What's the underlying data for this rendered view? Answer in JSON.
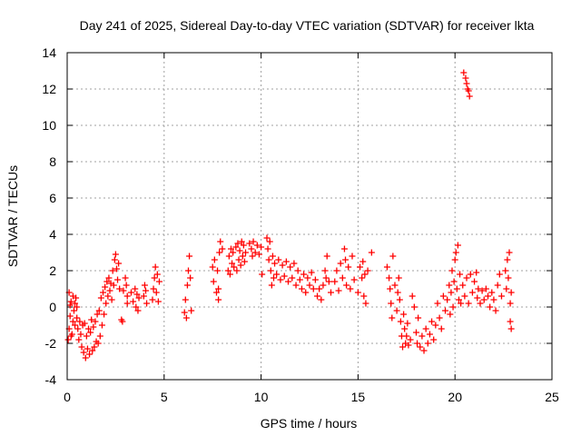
{
  "chart_data": {
    "type": "scatter",
    "title": "Day 241 of 2025, Sidereal Day-to-day VTEC variation (SDTVAR) for receiver lkta",
    "xlabel": "GPS time / hours",
    "ylabel": "SDTVAR / TECUs",
    "xlim": [
      0,
      25
    ],
    "ylim": [
      -4,
      14
    ],
    "xticks": [
      0,
      5,
      10,
      15,
      20,
      25
    ],
    "yticks": [
      -4,
      -2,
      0,
      2,
      4,
      6,
      8,
      10,
      12,
      14
    ],
    "grid": true,
    "marker": "+",
    "marker_color": "#ff0000",
    "series": [
      {
        "name": "SDTVAR",
        "points": [
          [
            0.05,
            -1.8
          ],
          [
            0.1,
            -1.2
          ],
          [
            0.1,
            0.8
          ],
          [
            0.15,
            -0.5
          ],
          [
            0.2,
            0.3
          ],
          [
            0.25,
            -1.5
          ],
          [
            0.3,
            0.6
          ],
          [
            0.35,
            -0.2
          ],
          [
            0.4,
            -1.0
          ],
          [
            0.45,
            0.5
          ],
          [
            0.5,
            -0.6
          ],
          [
            0.5,
            0.0
          ],
          [
            0.4,
            0.2
          ],
          [
            0.3,
            -0.8
          ],
          [
            0.2,
            -1.6
          ],
          [
            0.15,
            0.1
          ],
          [
            0.55,
            -1.2
          ],
          [
            0.6,
            -1.8
          ],
          [
            0.65,
            -0.8
          ],
          [
            0.7,
            -1.5
          ],
          [
            0.75,
            -2.2
          ],
          [
            0.8,
            -1.0
          ],
          [
            0.85,
            -2.5
          ],
          [
            0.9,
            -0.9
          ],
          [
            0.95,
            -2.8
          ],
          [
            1.0,
            -1.6
          ],
          [
            1.05,
            -2.3
          ],
          [
            1.1,
            -1.2
          ],
          [
            1.15,
            -2.6
          ],
          [
            1.2,
            -1.4
          ],
          [
            1.25,
            -0.7
          ],
          [
            1.3,
            -2.4
          ],
          [
            1.35,
            -1.1
          ],
          [
            1.4,
            -2.2
          ],
          [
            1.45,
            -0.8
          ],
          [
            1.5,
            -1.9
          ],
          [
            1.55,
            -0.4
          ],
          [
            1.6,
            -2.0
          ],
          [
            1.65,
            -0.2
          ],
          [
            1.7,
            -1.6
          ],
          [
            1.75,
            0.5
          ],
          [
            1.8,
            -1.0
          ],
          [
            1.85,
            0.8
          ],
          [
            1.9,
            -0.4
          ],
          [
            1.95,
            1.1
          ],
          [
            2.0,
            0.2
          ],
          [
            2.05,
            1.4
          ],
          [
            2.1,
            0.6
          ],
          [
            2.15,
            1.6
          ],
          [
            2.2,
            0.9
          ],
          [
            2.25,
            1.3
          ],
          [
            2.3,
            0.4
          ],
          [
            2.35,
            2.0
          ],
          [
            2.4,
            1.2
          ],
          [
            2.45,
            2.6
          ],
          [
            2.5,
            2.9
          ],
          [
            2.55,
            2.1
          ],
          [
            2.6,
            1.5
          ],
          [
            2.65,
            2.4
          ],
          [
            2.7,
            1.0
          ],
          [
            2.8,
            -0.7
          ],
          [
            2.85,
            -0.8
          ],
          [
            2.9,
            0.9
          ],
          [
            3.0,
            1.6
          ],
          [
            3.05,
            1.2
          ],
          [
            3.1,
            0.6
          ],
          [
            3.1,
            0.2
          ],
          [
            3.3,
            0.8
          ],
          [
            3.4,
            0.3
          ],
          [
            3.5,
            1.0
          ],
          [
            3.55,
            0.0
          ],
          [
            3.6,
            0.7
          ],
          [
            3.65,
            -0.2
          ],
          [
            3.7,
            0.5
          ],
          [
            3.95,
            0.6
          ],
          [
            4.0,
            1.2
          ],
          [
            4.05,
            0.9
          ],
          [
            4.1,
            0.2
          ],
          [
            4.4,
            0.4
          ],
          [
            4.45,
            1.0
          ],
          [
            4.5,
            1.6
          ],
          [
            4.55,
            2.2
          ],
          [
            4.6,
            0.8
          ],
          [
            4.65,
            1.8
          ],
          [
            4.7,
            0.3
          ],
          [
            4.75,
            1.4
          ],
          [
            6.05,
            -0.3
          ],
          [
            6.1,
            0.4
          ],
          [
            6.15,
            -0.6
          ],
          [
            6.2,
            1.2
          ],
          [
            6.25,
            2.0
          ],
          [
            6.3,
            2.8
          ],
          [
            6.35,
            1.6
          ],
          [
            6.4,
            -0.2
          ],
          [
            7.5,
            2.2
          ],
          [
            7.55,
            1.4
          ],
          [
            7.6,
            2.6
          ],
          [
            7.7,
            0.8
          ],
          [
            7.75,
            2.0
          ],
          [
            7.8,
            1.0
          ],
          [
            7.8,
            0.4
          ],
          [
            7.85,
            3.0
          ],
          [
            7.9,
            3.6
          ],
          [
            8.0,
            3.2
          ],
          [
            8.3,
            2.0
          ],
          [
            8.35,
            2.8
          ],
          [
            8.4,
            1.8
          ],
          [
            8.45,
            3.2
          ],
          [
            8.5,
            2.4
          ],
          [
            8.55,
            3.0
          ],
          [
            8.6,
            2.2
          ],
          [
            8.7,
            3.3
          ],
          [
            8.75,
            2.0
          ],
          [
            8.8,
            3.5
          ],
          [
            8.85,
            2.6
          ],
          [
            8.9,
            3.1
          ],
          [
            8.95,
            2.3
          ],
          [
            9.0,
            3.6
          ],
          [
            9.05,
            2.8
          ],
          [
            9.1,
            3.4
          ],
          [
            9.15,
            2.5
          ],
          [
            9.2,
            3.0
          ],
          [
            9.4,
            3.5
          ],
          [
            9.5,
            3.2
          ],
          [
            9.55,
            2.8
          ],
          [
            9.6,
            3.6
          ],
          [
            9.7,
            3.0
          ],
          [
            9.8,
            3.4
          ],
          [
            9.9,
            2.9
          ],
          [
            10.0,
            3.3
          ],
          [
            10.05,
            1.8
          ],
          [
            10.3,
            3.8
          ],
          [
            10.35,
            3.2
          ],
          [
            10.4,
            2.6
          ],
          [
            10.45,
            3.6
          ],
          [
            10.5,
            2.0
          ],
          [
            10.55,
            1.2
          ],
          [
            10.6,
            2.8
          ],
          [
            10.65,
            1.6
          ],
          [
            10.7,
            2.4
          ],
          [
            10.8,
            1.8
          ],
          [
            10.9,
            2.6
          ],
          [
            11.0,
            1.5
          ],
          [
            11.1,
            2.3
          ],
          [
            11.2,
            1.7
          ],
          [
            11.3,
            2.5
          ],
          [
            11.4,
            1.4
          ],
          [
            11.5,
            2.2
          ],
          [
            11.6,
            1.6
          ],
          [
            11.7,
            2.4
          ],
          [
            11.8,
            1.2
          ],
          [
            11.9,
            2.0
          ],
          [
            12.0,
            1.5
          ],
          [
            12.1,
            1.0
          ],
          [
            12.2,
            1.8
          ],
          [
            12.3,
            0.8
          ],
          [
            12.4,
            1.6
          ],
          [
            12.5,
            1.2
          ],
          [
            12.6,
            1.9
          ],
          [
            12.7,
            1.0
          ],
          [
            12.8,
            1.5
          ],
          [
            12.9,
            0.6
          ],
          [
            13.0,
            1.0
          ],
          [
            13.1,
            0.4
          ],
          [
            13.2,
            1.2
          ],
          [
            13.3,
            2.0
          ],
          [
            13.35,
            1.6
          ],
          [
            13.4,
            2.8
          ],
          [
            13.5,
            1.4
          ],
          [
            13.6,
            0.8
          ],
          [
            13.8,
            1.4
          ],
          [
            13.9,
            2.0
          ],
          [
            14.0,
            0.9
          ],
          [
            14.1,
            2.4
          ],
          [
            14.2,
            1.6
          ],
          [
            14.3,
            3.2
          ],
          [
            14.35,
            2.6
          ],
          [
            14.4,
            1.2
          ],
          [
            14.5,
            2.2
          ],
          [
            14.6,
            1.0
          ],
          [
            14.7,
            2.8
          ],
          [
            14.8,
            1.5
          ],
          [
            15.0,
            0.8
          ],
          [
            15.1,
            2.2
          ],
          [
            15.2,
            1.6
          ],
          [
            15.25,
            2.5
          ],
          [
            15.3,
            0.6
          ],
          [
            15.35,
            1.8
          ],
          [
            15.4,
            0.2
          ],
          [
            15.5,
            2.0
          ],
          [
            15.7,
            3.0
          ],
          [
            16.5,
            2.2
          ],
          [
            16.6,
            1.6
          ],
          [
            16.65,
            1.0
          ],
          [
            16.7,
            0.2
          ],
          [
            16.75,
            -0.6
          ],
          [
            16.8,
            2.8
          ],
          [
            16.9,
            1.2
          ],
          [
            17.0,
            -0.2
          ],
          [
            17.05,
            0.8
          ],
          [
            17.1,
            1.6
          ],
          [
            17.15,
            0.4
          ],
          [
            17.2,
            -0.8
          ],
          [
            17.25,
            -1.6
          ],
          [
            17.3,
            -2.2
          ],
          [
            17.35,
            -0.4
          ],
          [
            17.4,
            -1.2
          ],
          [
            17.45,
            -2.0
          ],
          [
            17.5,
            -1.6
          ],
          [
            17.55,
            -0.9
          ],
          [
            17.6,
            -2.1
          ],
          [
            17.7,
            -1.8
          ],
          [
            17.8,
            0.6
          ],
          [
            17.9,
            0.0
          ],
          [
            18.0,
            -1.4
          ],
          [
            18.05,
            -2.0
          ],
          [
            18.1,
            -0.6
          ],
          [
            18.2,
            -2.2
          ],
          [
            18.3,
            -1.6
          ],
          [
            18.4,
            -2.4
          ],
          [
            18.5,
            -1.2
          ],
          [
            18.6,
            -2.0
          ],
          [
            18.7,
            -1.5
          ],
          [
            18.8,
            -0.8
          ],
          [
            18.9,
            -1.8
          ],
          [
            19.0,
            -1.0
          ],
          [
            19.1,
            0.2
          ],
          [
            19.2,
            -0.6
          ],
          [
            19.3,
            -1.2
          ],
          [
            19.4,
            0.6
          ],
          [
            19.5,
            -0.2
          ],
          [
            19.6,
            0.4
          ],
          [
            19.7,
            1.2
          ],
          [
            19.75,
            -0.4
          ],
          [
            19.8,
            0.8
          ],
          [
            19.85,
            2.0
          ],
          [
            19.9,
            0.0
          ],
          [
            19.95,
            1.4
          ],
          [
            20.0,
            2.6
          ],
          [
            20.05,
            3.0
          ],
          [
            20.1,
            1.0
          ],
          [
            20.15,
            3.4
          ],
          [
            20.2,
            0.4
          ],
          [
            20.25,
            1.8
          ],
          [
            20.3,
            0.2
          ],
          [
            20.4,
            1.2
          ],
          [
            20.5,
            0.6
          ],
          [
            20.6,
            1.6
          ],
          [
            20.7,
            0.2
          ],
          [
            20.8,
            1.8
          ],
          [
            20.9,
            0.8
          ],
          [
            21.0,
            1.4
          ],
          [
            21.1,
            1.9
          ],
          [
            21.15,
            0.5
          ],
          [
            21.2,
            1.0
          ],
          [
            21.3,
            0.2
          ],
          [
            21.4,
            0.9
          ],
          [
            21.5,
            0.4
          ],
          [
            21.6,
            1.0
          ],
          [
            21.7,
            0.6
          ],
          [
            21.8,
            0.0
          ],
          [
            21.9,
            0.8
          ],
          [
            22.0,
            0.4
          ],
          [
            22.1,
            -0.2
          ],
          [
            22.2,
            1.2
          ],
          [
            22.3,
            1.8
          ],
          [
            22.4,
            0.6
          ],
          [
            22.6,
            2.0
          ],
          [
            22.65,
            1.0
          ],
          [
            22.7,
            2.6
          ],
          [
            22.75,
            1.6
          ],
          [
            22.8,
            3.0
          ],
          [
            22.85,
            0.2
          ],
          [
            22.85,
            -0.8
          ],
          [
            22.9,
            -1.2
          ],
          [
            22.9,
            0.8
          ],
          [
            20.45,
            12.9
          ],
          [
            20.55,
            12.6
          ],
          [
            20.6,
            12.3
          ],
          [
            20.65,
            12.0
          ],
          [
            20.7,
            11.9
          ],
          [
            20.75,
            11.6
          ]
        ]
      }
    ]
  }
}
